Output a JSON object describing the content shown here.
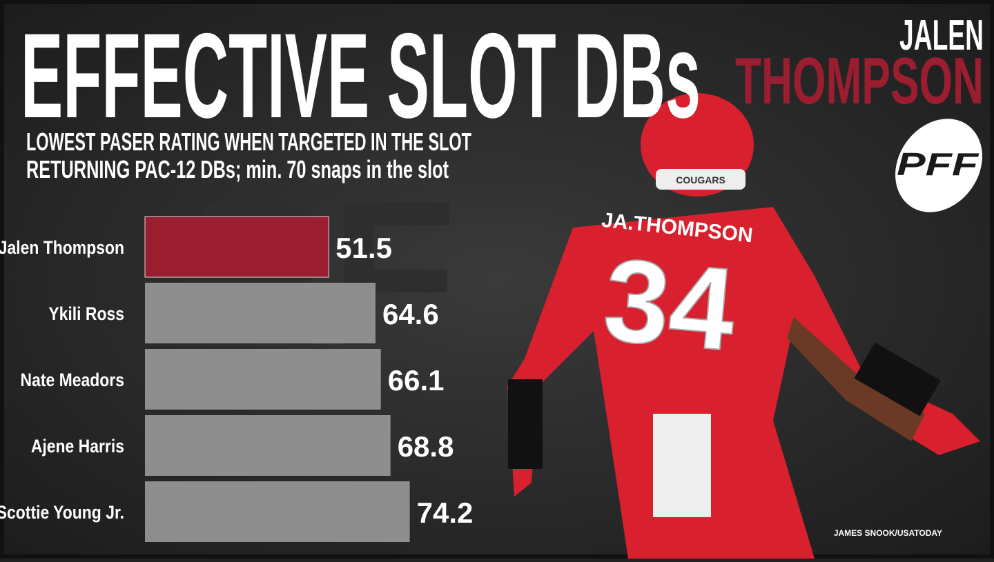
{
  "chart_data": {
    "type": "bar",
    "title": "EFFECTIVE SLOT DBs",
    "subtitle": [
      "LOWEST PASER RATING WHEN TARGETED IN THE SLOT",
      "RETURNING PAC-12 DBs; min. 70 snaps in the slot"
    ],
    "player_first": "JALEN",
    "player_last": "THOMPSON",
    "categories": [
      "Jalen Thompson",
      "Ykili Ross",
      "Nate Meadors",
      "Ajene Harris",
      "Scottie Young Jr."
    ],
    "values": [
      51.5,
      64.6,
      66.1,
      68.8,
      74.2
    ],
    "colors": [
      "#9b1d30",
      "#8e8e8e",
      "#8e8e8e",
      "#8e8e8e",
      "#8e8e8e"
    ],
    "logo": "PFF",
    "photo_text": {
      "jersey_name": "JA.THOMPSON",
      "jersey_number": "34",
      "helmet": "COUGARS"
    },
    "credit": "JAMES SNOOK/USATODAY"
  }
}
